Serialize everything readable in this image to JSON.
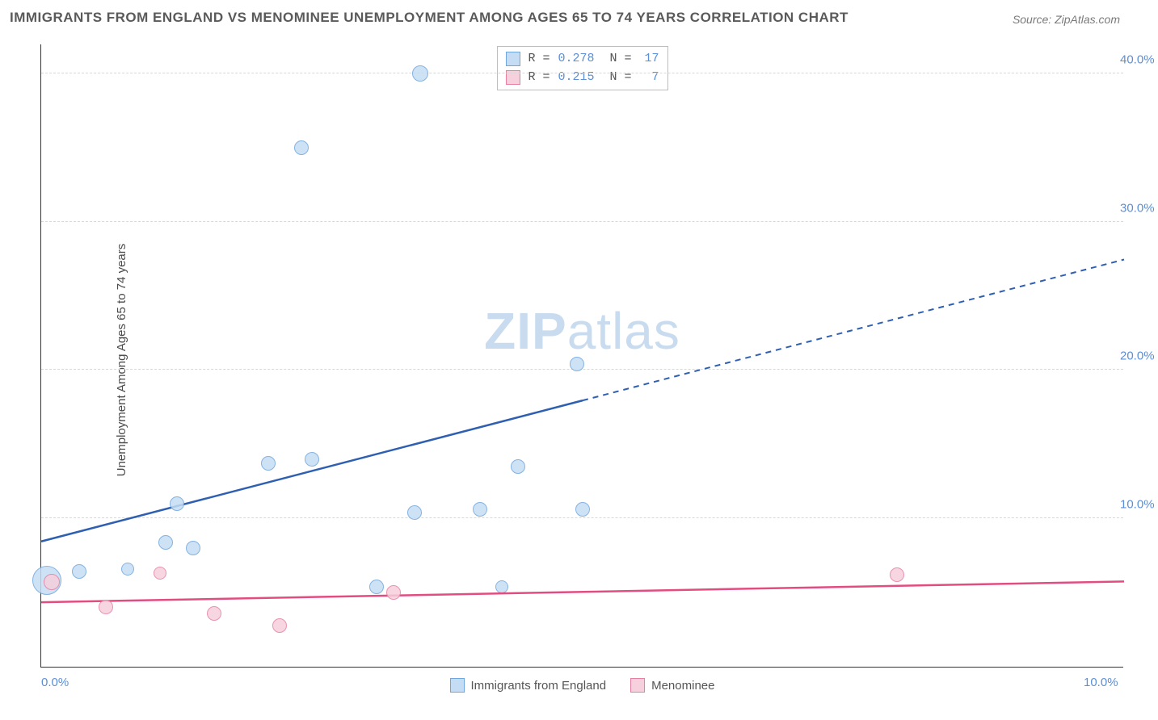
{
  "title": "IMMIGRANTS FROM ENGLAND VS MENOMINEE UNEMPLOYMENT AMONG AGES 65 TO 74 YEARS CORRELATION CHART",
  "source": "Source: ZipAtlas.com",
  "y_axis_label": "Unemployment Among Ages 65 to 74 years",
  "watermark": {
    "bold": "ZIP",
    "rest": "atlas"
  },
  "chart": {
    "type": "scatter-with-trendlines",
    "background_color": "#ffffff",
    "grid_color": "#d8d8d8",
    "axis_color": "#333333",
    "tick_color": "#5b8fd6",
    "xlim": [
      0.0,
      10.0
    ],
    "ylim": [
      0.0,
      42.0
    ],
    "yticks": [
      10.0,
      20.0,
      30.0,
      40.0
    ],
    "ytick_labels": [
      "10.0%",
      "20.0%",
      "30.0%",
      "40.0%"
    ],
    "xticks": [
      0.0,
      10.0
    ],
    "xtick_labels": [
      "0.0%",
      "10.0%"
    ],
    "series": [
      {
        "id": "england",
        "label": "Immigrants from England",
        "fill": "#c5ddf4",
        "stroke": "#6fa6dd",
        "line_color": "#2e5fb0",
        "R": "0.278",
        "N": "17",
        "points": [
          {
            "x": 0.05,
            "y": 5.8,
            "r": 18
          },
          {
            "x": 0.35,
            "y": 6.4,
            "r": 9
          },
          {
            "x": 0.8,
            "y": 6.6,
            "r": 8
          },
          {
            "x": 1.15,
            "y": 8.4,
            "r": 9
          },
          {
            "x": 1.4,
            "y": 8.0,
            "r": 9
          },
          {
            "x": 1.25,
            "y": 11.0,
            "r": 9
          },
          {
            "x": 2.1,
            "y": 13.7,
            "r": 9
          },
          {
            "x": 2.5,
            "y": 14.0,
            "r": 9
          },
          {
            "x": 2.4,
            "y": 35.0,
            "r": 9
          },
          {
            "x": 3.5,
            "y": 40.0,
            "r": 10
          },
          {
            "x": 3.1,
            "y": 5.4,
            "r": 9
          },
          {
            "x": 3.45,
            "y": 10.4,
            "r": 9
          },
          {
            "x": 4.05,
            "y": 10.6,
            "r": 9
          },
          {
            "x": 4.25,
            "y": 5.4,
            "r": 8
          },
          {
            "x": 4.4,
            "y": 13.5,
            "r": 9
          },
          {
            "x": 5.0,
            "y": 10.6,
            "r": 9
          },
          {
            "x": 4.95,
            "y": 20.4,
            "r": 9
          }
        ],
        "trend": {
          "x1": 0.0,
          "y1": 8.5,
          "x2": 10.0,
          "y2": 27.5,
          "solid_until_x": 5.0
        }
      },
      {
        "id": "menominee",
        "label": "Menominee",
        "fill": "#f6d0dc",
        "stroke": "#e77fa3",
        "line_color": "#e24d81",
        "R": "0.215",
        "N": "7",
        "points": [
          {
            "x": 0.1,
            "y": 5.7,
            "r": 10
          },
          {
            "x": 0.6,
            "y": 4.0,
            "r": 9
          },
          {
            "x": 1.1,
            "y": 6.3,
            "r": 8
          },
          {
            "x": 1.6,
            "y": 3.6,
            "r": 9
          },
          {
            "x": 2.2,
            "y": 2.8,
            "r": 9
          },
          {
            "x": 3.25,
            "y": 5.0,
            "r": 9
          },
          {
            "x": 7.9,
            "y": 6.2,
            "r": 9
          }
        ],
        "trend": {
          "x1": 0.0,
          "y1": 4.4,
          "x2": 10.0,
          "y2": 5.8,
          "solid_until_x": 10.0
        }
      }
    ]
  },
  "legend_top_template": {
    "r_prefix": "R =",
    "n_prefix": "N ="
  }
}
